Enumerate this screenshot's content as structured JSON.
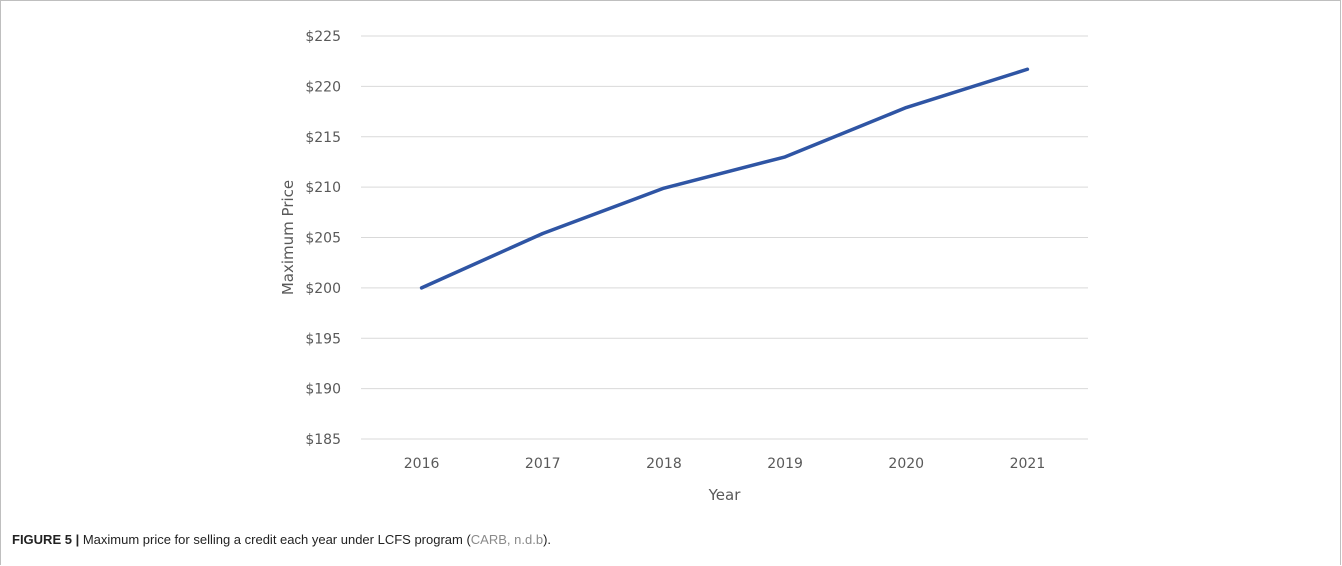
{
  "chart_data": {
    "type": "line",
    "x": [
      "2016",
      "2017",
      "2018",
      "2019",
      "2020",
      "2021"
    ],
    "series": [
      {
        "values": [
          200.0,
          205.4,
          209.9,
          213.0,
          217.9,
          221.7
        ],
        "color": "#2f55a4"
      }
    ],
    "ylabel": "Maximum Price",
    "xlabel": "Year",
    "ylim": [
      185,
      225
    ],
    "ytick_step": 5,
    "ytick_labels": [
      "$185",
      "$190",
      "$195",
      "$200",
      "$205",
      "$210",
      "$215",
      "$220",
      "$225"
    ],
    "grid": true,
    "gridline_color": "#d9d9d9"
  },
  "caption": {
    "label": "FIGURE 5 |",
    "text": " Maximum price for selling a credit each year under LCFS program (",
    "citation": "CARB, n.d.b",
    "close": ")."
  }
}
